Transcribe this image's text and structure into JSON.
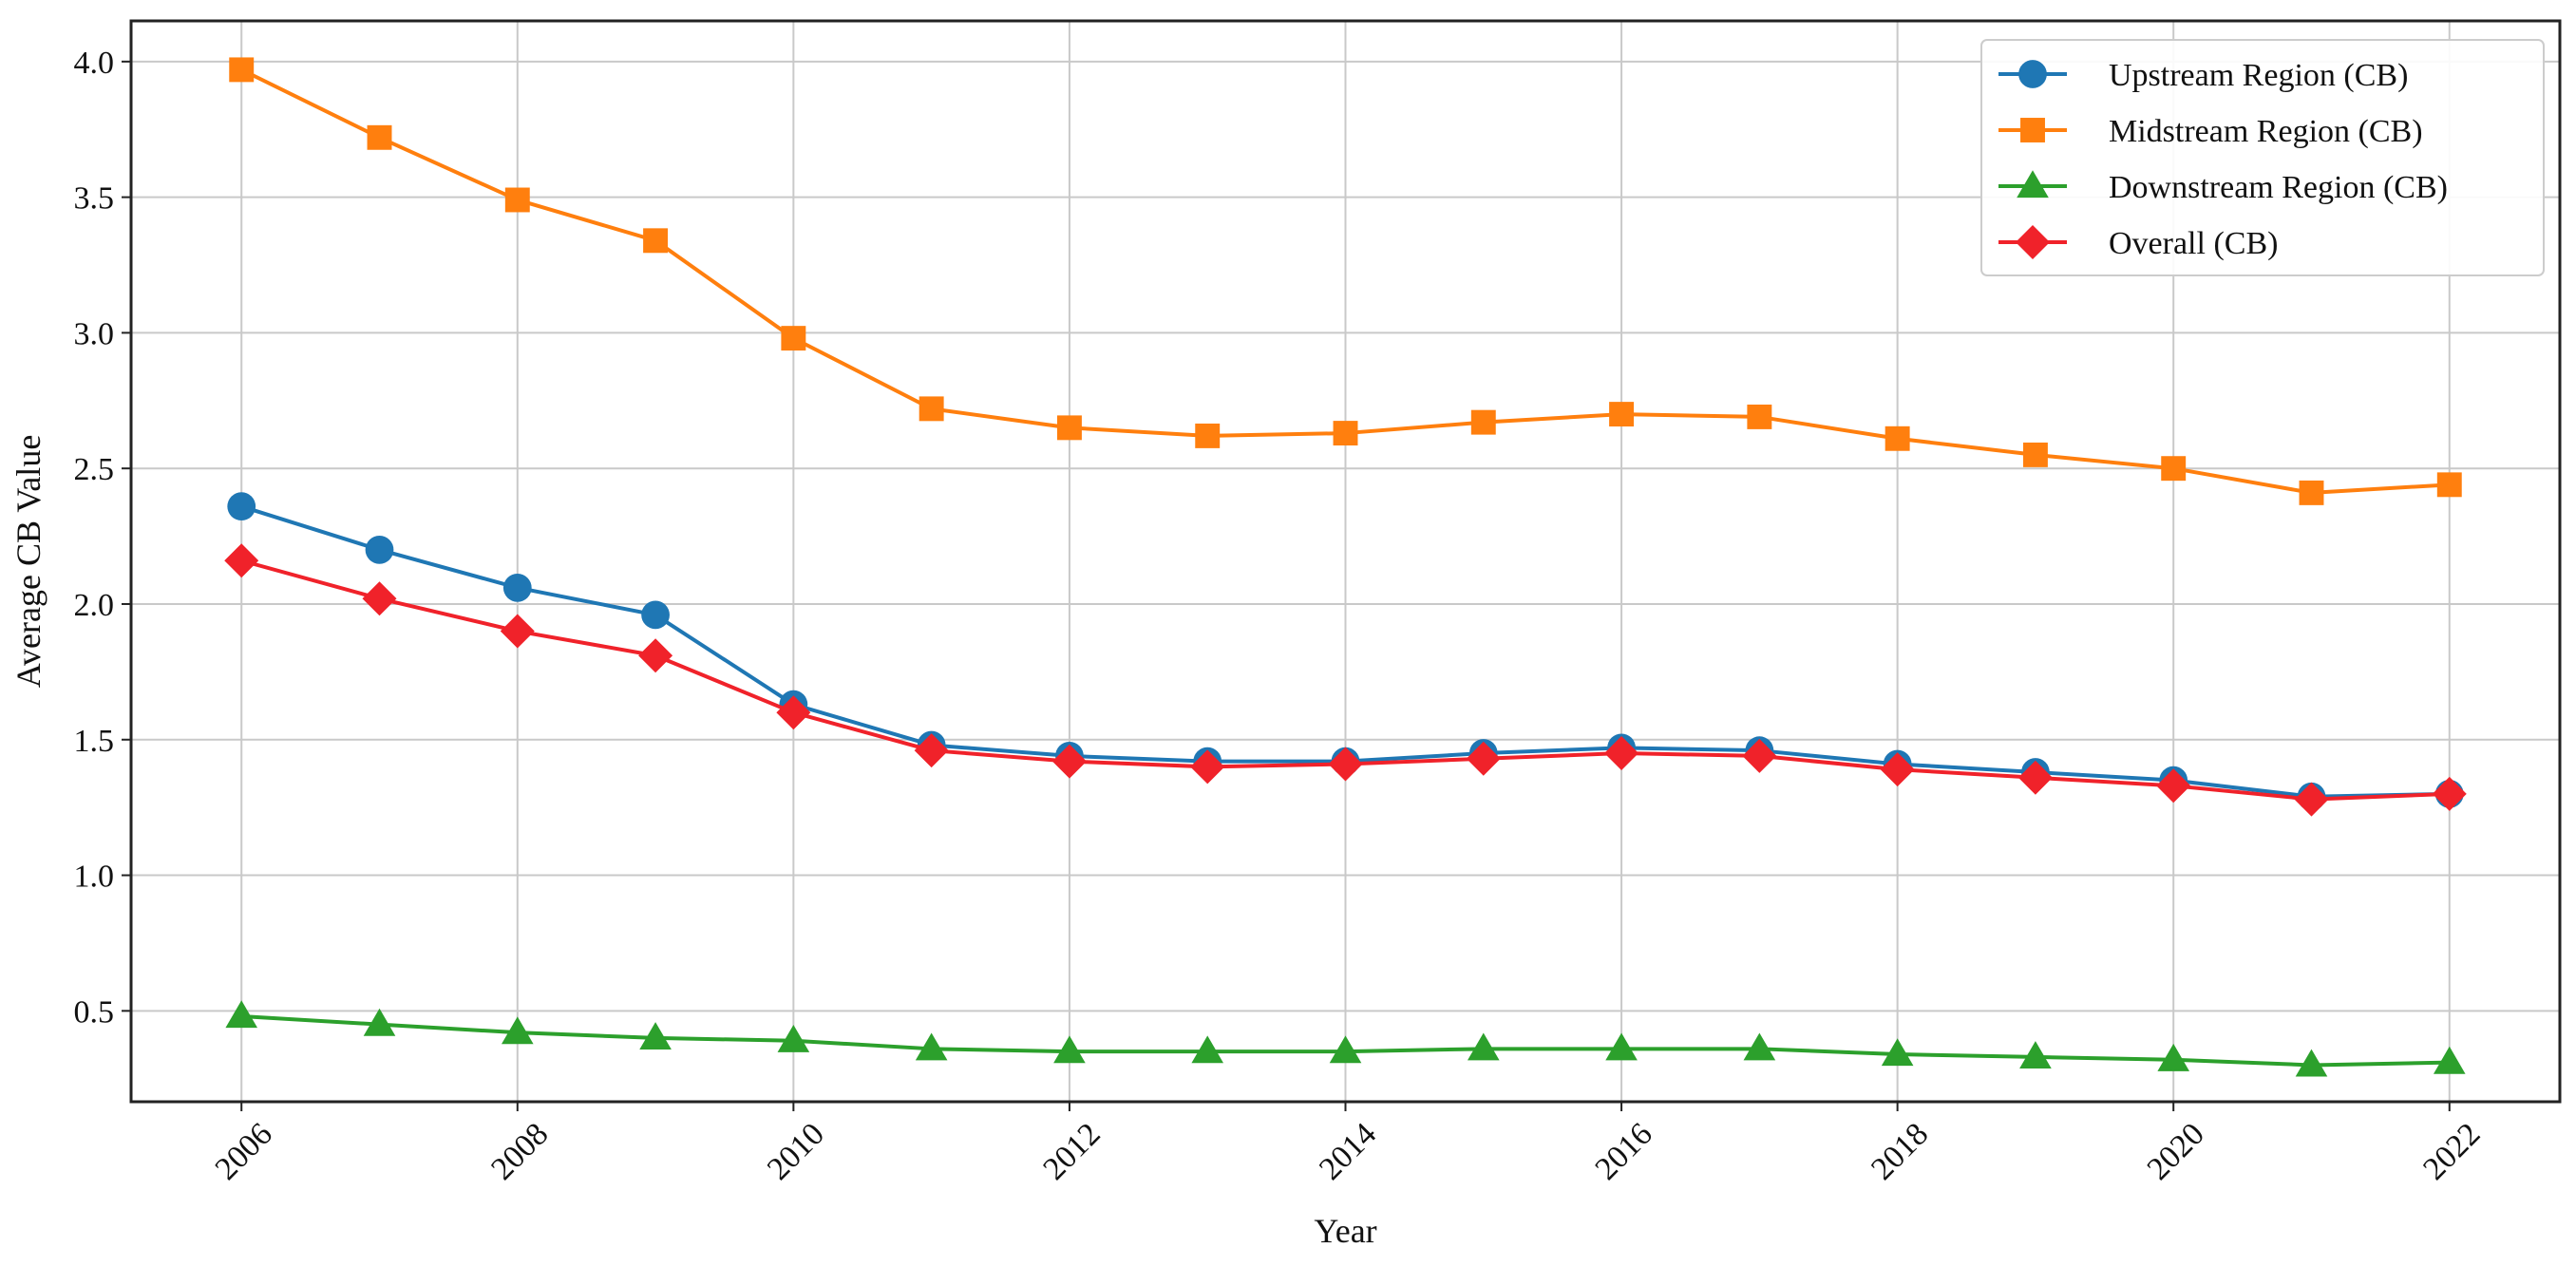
{
  "chart_data": {
    "type": "line",
    "title": "",
    "xlabel": "Year",
    "ylabel": "Average CB Value",
    "x": [
      2006,
      2007,
      2008,
      2009,
      2010,
      2011,
      2012,
      2013,
      2014,
      2015,
      2016,
      2017,
      2018,
      2019,
      2020,
      2021,
      2022
    ],
    "x_ticks": [
      "2006",
      "2008",
      "2010",
      "2012",
      "2014",
      "2016",
      "2018",
      "2020",
      "2022"
    ],
    "y_ticks": [
      "0.5",
      "1.0",
      "1.5",
      "2.0",
      "2.5",
      "3.0",
      "3.5",
      "4.0"
    ],
    "xlim": [
      2005.2,
      2022.8
    ],
    "ylim": [
      0.165,
      4.15
    ],
    "grid": true,
    "legend_position": "top-right",
    "series": [
      {
        "name": "Upstream Region (CB)",
        "color": "#1f77b4",
        "marker": "circle",
        "values": [
          2.36,
          2.2,
          2.06,
          1.96,
          1.63,
          1.48,
          1.44,
          1.42,
          1.42,
          1.45,
          1.47,
          1.46,
          1.41,
          1.38,
          1.35,
          1.29,
          1.3
        ]
      },
      {
        "name": "Midstream Region (CB)",
        "color": "#ff7f0e",
        "marker": "square",
        "values": [
          3.97,
          3.72,
          3.49,
          3.34,
          2.98,
          2.72,
          2.65,
          2.62,
          2.63,
          2.67,
          2.7,
          2.69,
          2.61,
          2.55,
          2.5,
          2.41,
          2.44
        ]
      },
      {
        "name": "Downstream Region (CB)",
        "color": "#2ca02c",
        "marker": "triangle",
        "values": [
          0.48,
          0.45,
          0.42,
          0.4,
          0.39,
          0.36,
          0.35,
          0.35,
          0.35,
          0.36,
          0.36,
          0.36,
          0.34,
          0.33,
          0.32,
          0.3,
          0.31
        ]
      },
      {
        "name": "Overall (CB)",
        "color": "#f0222a",
        "marker": "diamond",
        "values": [
          2.16,
          2.02,
          1.9,
          1.81,
          1.6,
          1.46,
          1.42,
          1.4,
          1.41,
          1.43,
          1.45,
          1.44,
          1.39,
          1.36,
          1.33,
          1.28,
          1.3
        ]
      }
    ]
  }
}
